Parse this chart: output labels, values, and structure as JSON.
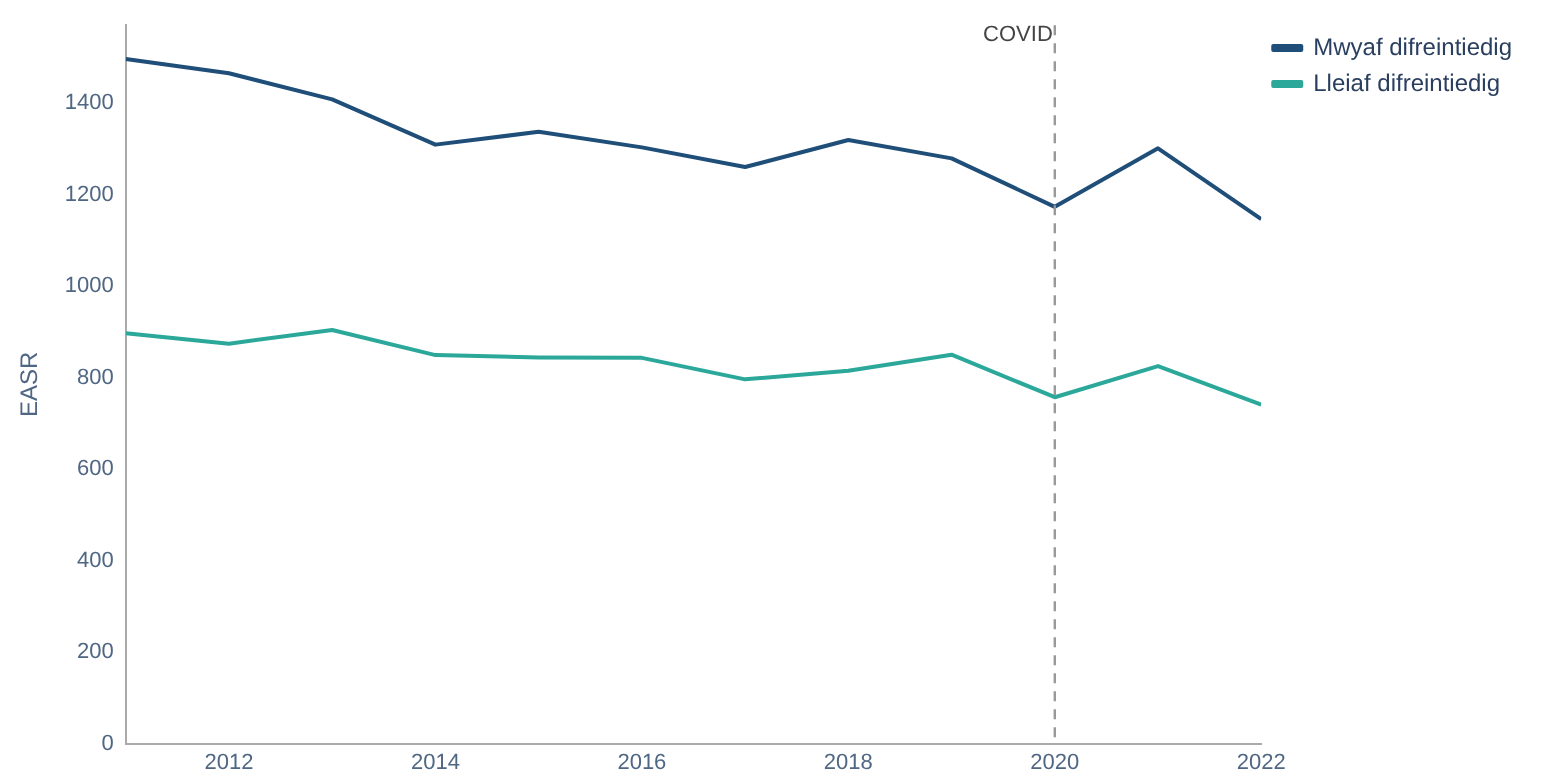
{
  "chart_data": {
    "type": "line",
    "ylabel": "EASR",
    "x": [
      2011,
      2012,
      2013,
      2014,
      2015,
      2016,
      2017,
      2018,
      2019,
      2020,
      2021,
      2022
    ],
    "series": [
      {
        "name": "Mwyaf difreintiedig",
        "color": "#1f4e79",
        "values": [
          1496,
          1465,
          1408,
          1309,
          1337,
          1303,
          1260,
          1319,
          1279,
          1173,
          1301,
          1146
        ]
      },
      {
        "name": "Lleiaf difreintiedig",
        "color": "#2ba89a",
        "values": [
          897,
          874,
          904,
          849,
          844,
          843,
          796,
          815,
          850,
          757,
          825,
          741
        ]
      }
    ],
    "xlim": [
      2011,
      2022
    ],
    "xticks": [
      2012,
      2014,
      2016,
      2018,
      2020,
      2022
    ],
    "ylim": [
      0,
      1570
    ],
    "yticks": [
      0,
      200,
      400,
      600,
      800,
      1000,
      1200,
      1400
    ],
    "ref_lines": [
      {
        "axis": "x",
        "value": 2020,
        "label": "COVID",
        "color": "#999999",
        "line_style": "dashed"
      }
    ],
    "grid": false,
    "legend": "top right",
    "marker": "none",
    "line_style": "solid"
  }
}
